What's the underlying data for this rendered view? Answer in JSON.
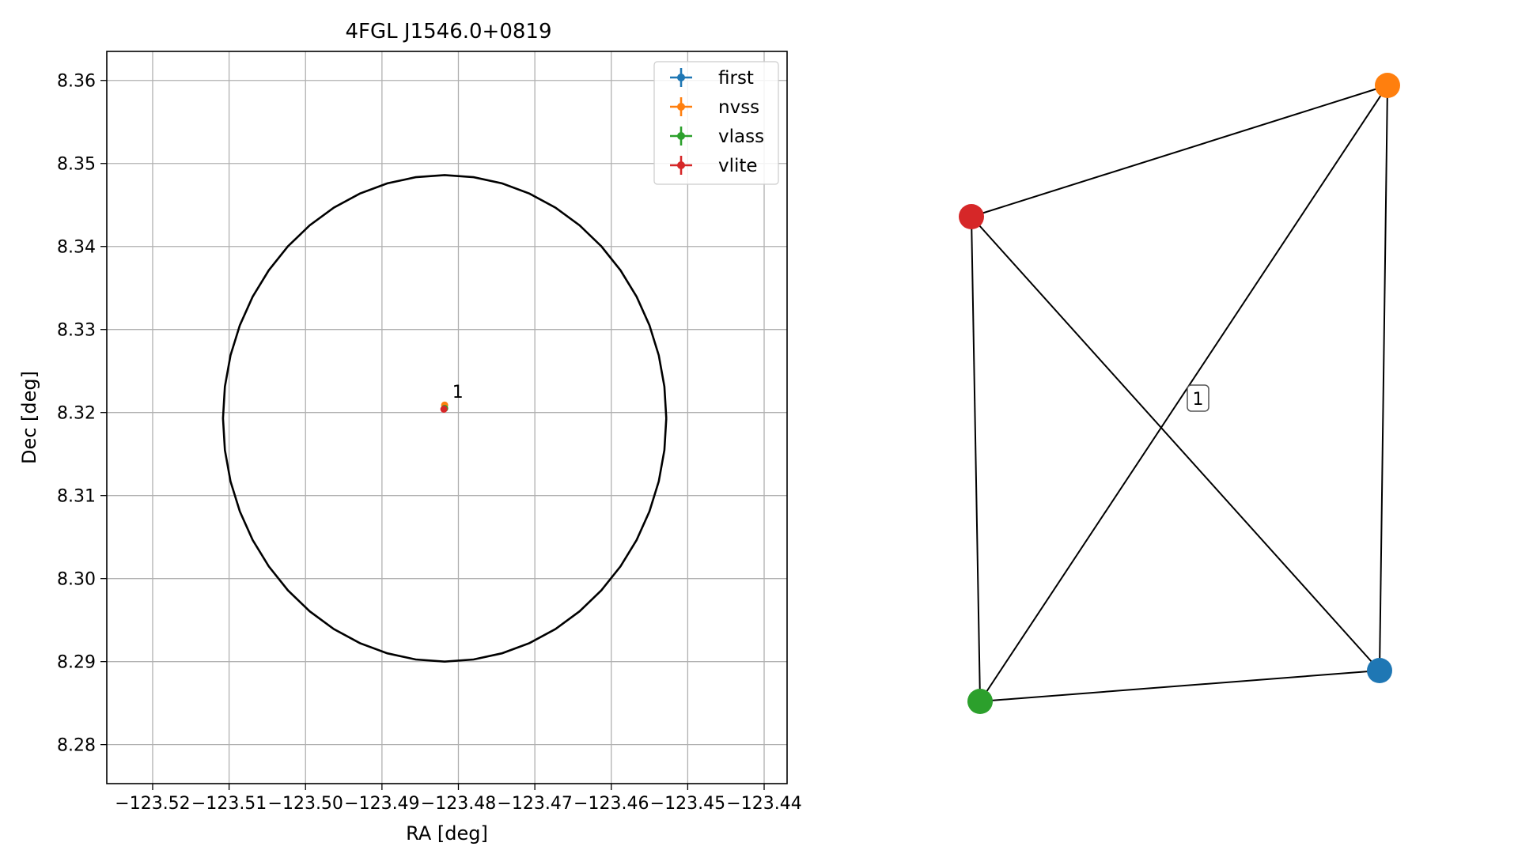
{
  "chart_data": [
    {
      "type": "scatter",
      "title": "4FGL J1546.0+0819",
      "xlabel": "RA [deg]",
      "ylabel": "Dec [deg]",
      "xlim": [
        -123.526,
        -123.437
      ],
      "ylim": [
        8.2753,
        8.3635
      ],
      "x_ticks": [
        -123.52,
        -123.51,
        -123.5,
        -123.49,
        -123.48,
        -123.47,
        -123.46,
        -123.45,
        -123.44
      ],
      "x_tick_labels": [
        "−123.52",
        "−123.51",
        "−123.50",
        "−123.49",
        "−123.48",
        "−123.47",
        "−123.46",
        "−123.45",
        "−123.44"
      ],
      "y_ticks": [
        8.28,
        8.29,
        8.3,
        8.31,
        8.32,
        8.33,
        8.34,
        8.35,
        8.36
      ],
      "y_tick_labels": [
        "8.28",
        "8.29",
        "8.30",
        "8.31",
        "8.32",
        "8.33",
        "8.34",
        "8.35",
        "8.36"
      ],
      "grid": true,
      "legend_placement": "top-right",
      "series": [
        {
          "name": "first",
          "color": "#1f77b4",
          "points": [
            {
              "x": -123.4818,
              "y": 8.3205
            }
          ]
        },
        {
          "name": "nvss",
          "color": "#ff7f0e",
          "points": [
            {
              "x": -123.4818,
              "y": 8.3209
            }
          ]
        },
        {
          "name": "vlass",
          "color": "#2ca02c",
          "points": [
            {
              "x": -123.4818,
              "y": 8.3205
            }
          ]
        },
        {
          "name": "vlite",
          "color": "#d62728",
          "points": [
            {
              "x": -123.4819,
              "y": 8.3204
            }
          ]
        }
      ],
      "circle": {
        "center_x": -123.4818,
        "center_y": 8.3193,
        "radius_x": 0.029,
        "radius_y": 0.0293,
        "color": "#000000"
      },
      "annotations": [
        {
          "text": "1",
          "x": -123.4808,
          "y": 8.3218
        }
      ]
    },
    {
      "type": "network",
      "nodes": [
        {
          "id": "first",
          "color": "#1f77b4"
        },
        {
          "id": "nvss",
          "color": "#ff7f0e"
        },
        {
          "id": "vlass",
          "color": "#2ca02c"
        },
        {
          "id": "vlite",
          "color": "#d62728"
        }
      ],
      "edges": [
        {
          "source": "vlite",
          "target": "nvss"
        },
        {
          "source": "vlite",
          "target": "vlass"
        },
        {
          "source": "vlite",
          "target": "first"
        },
        {
          "source": "nvss",
          "target": "vlass"
        },
        {
          "source": "nvss",
          "target": "first"
        },
        {
          "source": "vlass",
          "target": "first"
        }
      ],
      "edge_label": "1"
    }
  ]
}
